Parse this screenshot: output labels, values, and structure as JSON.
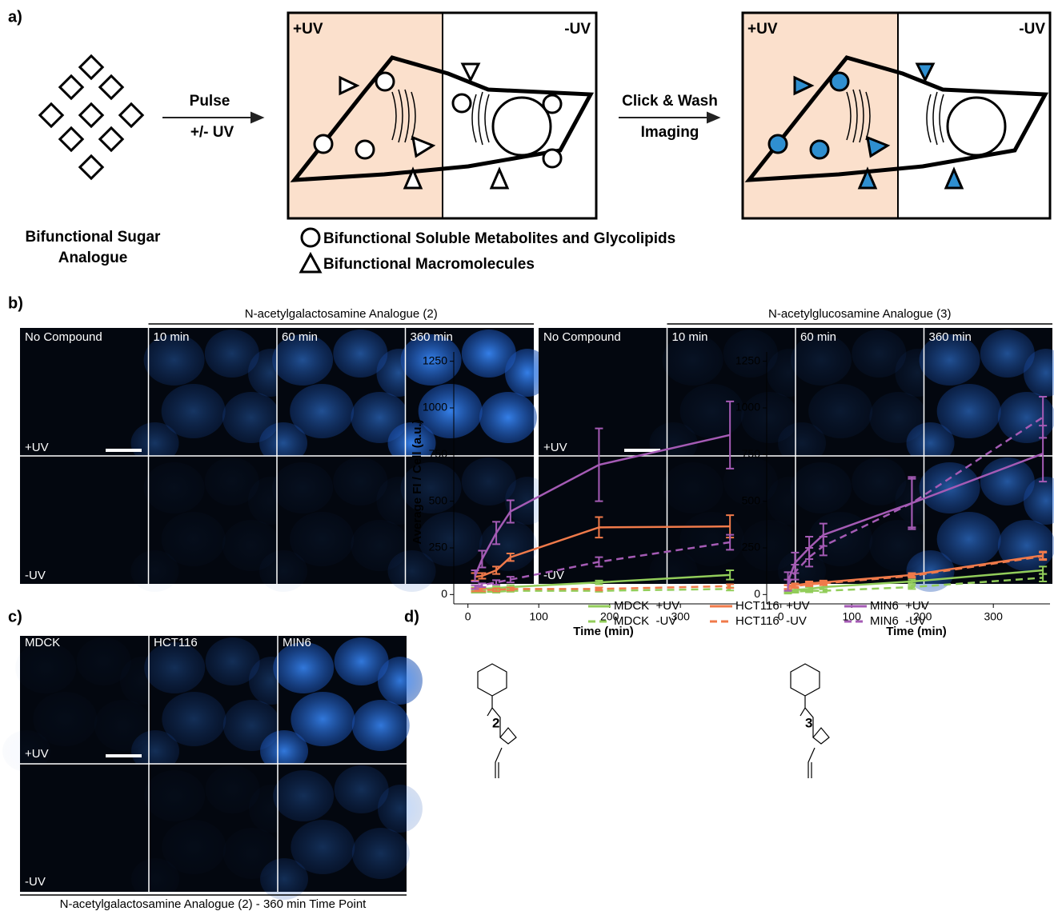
{
  "panel_a": {
    "label": "a)",
    "arrow1_top": "Pulse",
    "arrow1_bottom": "+/- UV",
    "arrow2_top": "Click & Wash",
    "arrow2_bottom": "Imaging",
    "box1_left": "+UV",
    "box1_right": "-UV",
    "box2_left": "+UV",
    "box2_right": "-UV",
    "sugar_label": [
      "Bifunctional Sugar",
      "Analogue"
    ],
    "legend": [
      "Bifunctional Soluble Metabolites and Glycolipids",
      "Bifunctional Macromolecules"
    ]
  },
  "panel_b": {
    "label": "b)",
    "groups": [
      {
        "title": "N-acetylgalactosamine Analogue (2)",
        "columns": [
          "No Compound",
          "10 min",
          "60 min",
          "360 min"
        ],
        "rows": [
          "+UV",
          "-UV"
        ]
      },
      {
        "title": "N-acetylglucosamine Analogue (3)",
        "columns": [
          "No Compound",
          "10 min",
          "60 min",
          "360 min"
        ],
        "rows": [
          "+UV",
          "-UV"
        ]
      }
    ]
  },
  "panel_c": {
    "label": "c)",
    "columns": [
      "MDCK",
      "HCT116",
      "MIN6"
    ],
    "rows": [
      "+UV",
      "-UV"
    ],
    "caption": "N-acetylgalactosamine Analogue (2) - 360 min Time Point"
  },
  "panel_d": {
    "label": "d)"
  },
  "chart_data": [
    {
      "type": "line",
      "compound": "2",
      "ylabel": "Average FI / Cell (a.u.)",
      "xlabel": "Time (min)",
      "x": [
        10,
        20,
        40,
        60,
        185,
        370
      ],
      "xlim": [
        -20,
        380
      ],
      "ylim": [
        -50,
        1300
      ],
      "xticks": [
        0,
        100,
        200,
        300
      ],
      "yticks": [
        0,
        250,
        500,
        750,
        1000,
        1250
      ],
      "series": [
        {
          "name": "MDCK  +UV",
          "color": "#92cd5a",
          "line_style": "solid",
          "values": [
            30,
            30,
            35,
            40,
            65,
            105
          ],
          "errors": [
            8,
            8,
            8,
            10,
            10,
            25
          ]
        },
        {
          "name": "MDCK  -UV",
          "color": "#92cd5a",
          "line_style": "dashed",
          "values": [
            15,
            15,
            15,
            20,
            20,
            30
          ],
          "errors": [
            5,
            5,
            5,
            5,
            5,
            8
          ]
        },
        {
          "name": "HCT116  +UV",
          "color": "#f07a4a",
          "line_style": "solid",
          "values": [
            95,
            100,
            130,
            200,
            360,
            365
          ],
          "errors": [
            20,
            15,
            20,
            20,
            55,
            60
          ]
        },
        {
          "name": "HCT116  -UV",
          "color": "#f07a4a",
          "line_style": "dashed",
          "values": [
            25,
            25,
            25,
            30,
            30,
            45
          ],
          "errors": [
            8,
            8,
            8,
            8,
            8,
            10
          ]
        },
        {
          "name": "MIN6  +UV",
          "color": "#a55bb5",
          "line_style": "solid",
          "values": [
            100,
            190,
            330,
            445,
            695,
            855
          ],
          "errors": [
            30,
            45,
            60,
            60,
            195,
            180
          ]
        },
        {
          "name": "MIN6  -UV",
          "color": "#a55bb5",
          "line_style": "dashed",
          "values": [
            40,
            50,
            65,
            80,
            175,
            280
          ],
          "errors": [
            10,
            10,
            12,
            15,
            25,
            40
          ]
        }
      ]
    },
    {
      "type": "line",
      "compound": "3",
      "xlabel": "Time (min)",
      "x": [
        10,
        20,
        40,
        60,
        185,
        370
      ],
      "xlim": [
        -20,
        380
      ],
      "ylim": [
        -50,
        1300
      ],
      "xticks": [
        0,
        100,
        200,
        300
      ],
      "yticks": [
        0,
        250,
        500,
        750,
        1000,
        1250
      ],
      "series": [
        {
          "color": "#92cd5a",
          "line_style": "solid",
          "values": [
            20,
            25,
            30,
            40,
            70,
            130
          ],
          "errors": [
            10,
            10,
            10,
            10,
            10,
            20
          ]
        },
        {
          "color": "#92cd5a",
          "line_style": "dashed",
          "values": [
            10,
            15,
            20,
            20,
            40,
            90
          ],
          "errors": [
            5,
            5,
            8,
            8,
            10,
            20
          ]
        },
        {
          "color": "#f07a4a",
          "line_style": "solid",
          "values": [
            40,
            50,
            60,
            65,
            105,
            210
          ],
          "errors": [
            10,
            10,
            10,
            10,
            10,
            20
          ]
        },
        {
          "color": "#f07a4a",
          "line_style": "dashed",
          "values": [
            40,
            45,
            55,
            60,
            100,
            205
          ],
          "errors": [
            10,
            10,
            10,
            10,
            10,
            20
          ]
        },
        {
          "color": "#a55bb5",
          "line_style": "solid",
          "values": [
            70,
            170,
            250,
            320,
            490,
            755
          ],
          "errors": [
            50,
            55,
            60,
            60,
            130,
            150
          ]
        },
        {
          "color": "#a55bb5",
          "line_style": "dashed",
          "values": [
            50,
            120,
            200,
            260,
            490,
            950
          ],
          "errors": [
            30,
            40,
            50,
            50,
            140,
            110
          ]
        }
      ]
    }
  ]
}
